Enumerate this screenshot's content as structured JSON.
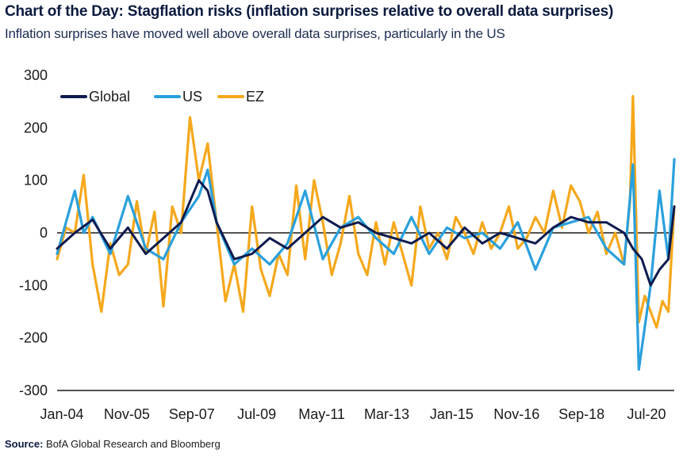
{
  "title": "Chart of the Day: Stagflation risks (inflation surprises relative to overall data surprises)",
  "subtitle": "Inflation surprises have moved well above overall data surprises, particularly in the US",
  "source_label": "Source:",
  "source_text": "BofA Global Research and Bloomberg",
  "chart_data": {
    "type": "line",
    "title": "Chart of the Day: Stagflation risks (inflation surprises relative to overall data surprises)",
    "subtitle": "Inflation surprises have moved well above overall data surprises, particularly in the US",
    "xlabel": "",
    "ylabel": "",
    "ylim": [
      -300,
      300
    ],
    "yticks": [
      300,
      200,
      100,
      0,
      -100,
      -200,
      -300
    ],
    "xlim": [
      "Jan-04",
      "Jun-21"
    ],
    "xtick_labels": [
      "Jan-04",
      "Nov-05",
      "Sep-07",
      "Jul-09",
      "May-11",
      "Mar-13",
      "Jan-15",
      "Nov-16",
      "Sep-18",
      "Jul-20"
    ],
    "legend_position": "top-left",
    "grid": false,
    "colors": {
      "Global": "#0d1b4f",
      "US": "#2aa0dc",
      "EZ": "#f5a81c"
    },
    "series": [
      {
        "name": "Global",
        "points": [
          [
            "Jan-04",
            -30
          ],
          [
            "Jul-04",
            0
          ],
          [
            "Jan-05",
            25
          ],
          [
            "Jul-05",
            -30
          ],
          [
            "Jan-06",
            10
          ],
          [
            "Jul-06",
            -40
          ],
          [
            "Jan-07",
            -10
          ],
          [
            "Jul-07",
            20
          ],
          [
            "Jan-08",
            100
          ],
          [
            "Apr-08",
            80
          ],
          [
            "Jul-08",
            20
          ],
          [
            "Jan-09",
            -50
          ],
          [
            "Jul-09",
            -40
          ],
          [
            "Jan-10",
            -10
          ],
          [
            "Jul-10",
            -30
          ],
          [
            "Jan-11",
            0
          ],
          [
            "Jul-11",
            30
          ],
          [
            "Jan-12",
            10
          ],
          [
            "Jul-12",
            20
          ],
          [
            "Jan-13",
            0
          ],
          [
            "Jul-13",
            -10
          ],
          [
            "Jan-14",
            -20
          ],
          [
            "Jul-14",
            0
          ],
          [
            "Jan-15",
            -30
          ],
          [
            "Jul-15",
            10
          ],
          [
            "Jan-16",
            -20
          ],
          [
            "Jul-16",
            0
          ],
          [
            "Jan-17",
            -10
          ],
          [
            "Jul-17",
            -20
          ],
          [
            "Jan-18",
            10
          ],
          [
            "Jul-18",
            30
          ],
          [
            "Jan-19",
            20
          ],
          [
            "Jul-19",
            20
          ],
          [
            "Jan-20",
            0
          ],
          [
            "Apr-20",
            -30
          ],
          [
            "Jul-20",
            -50
          ],
          [
            "Oct-20",
            -100
          ],
          [
            "Jan-21",
            -70
          ],
          [
            "Apr-21",
            -50
          ],
          [
            "Jun-21",
            50
          ]
        ]
      },
      {
        "name": "US",
        "points": [
          [
            "Jan-04",
            -40
          ],
          [
            "Apr-04",
            20
          ],
          [
            "Jul-04",
            80
          ],
          [
            "Oct-04",
            0
          ],
          [
            "Jan-05",
            30
          ],
          [
            "Jul-05",
            -40
          ],
          [
            "Jan-06",
            70
          ],
          [
            "Jul-06",
            -30
          ],
          [
            "Jan-07",
            -50
          ],
          [
            "Jul-07",
            20
          ],
          [
            "Jan-08",
            70
          ],
          [
            "Apr-08",
            120
          ],
          [
            "Jul-08",
            20
          ],
          [
            "Jan-09",
            -60
          ],
          [
            "Jul-09",
            -30
          ],
          [
            "Jan-10",
            -60
          ],
          [
            "Jul-10",
            -20
          ],
          [
            "Jan-11",
            80
          ],
          [
            "Jul-11",
            -50
          ],
          [
            "Jan-12",
            10
          ],
          [
            "Jul-12",
            30
          ],
          [
            "Jan-13",
            -10
          ],
          [
            "Jul-13",
            -40
          ],
          [
            "Jan-14",
            30
          ],
          [
            "Jul-14",
            -40
          ],
          [
            "Jan-15",
            10
          ],
          [
            "Jul-15",
            -10
          ],
          [
            "Jan-16",
            0
          ],
          [
            "Jul-16",
            -30
          ],
          [
            "Jan-17",
            20
          ],
          [
            "Jul-17",
            -70
          ],
          [
            "Jan-18",
            10
          ],
          [
            "Jul-18",
            20
          ],
          [
            "Jan-19",
            30
          ],
          [
            "Jul-19",
            -30
          ],
          [
            "Jan-20",
            -60
          ],
          [
            "Apr-20",
            130
          ],
          [
            "Jun-20",
            -260
          ],
          [
            "Oct-20",
            -100
          ],
          [
            "Jan-21",
            80
          ],
          [
            "Apr-21",
            -50
          ],
          [
            "Jun-21",
            140
          ]
        ]
      },
      {
        "name": "EZ",
        "points": [
          [
            "Jan-04",
            -50
          ],
          [
            "Apr-04",
            10
          ],
          [
            "Jul-04",
            0
          ],
          [
            "Oct-04",
            110
          ],
          [
            "Jan-05",
            -60
          ],
          [
            "Apr-05",
            -150
          ],
          [
            "Jul-05",
            -20
          ],
          [
            "Oct-05",
            -80
          ],
          [
            "Jan-06",
            -60
          ],
          [
            "Apr-06",
            60
          ],
          [
            "Jul-06",
            -40
          ],
          [
            "Oct-06",
            40
          ],
          [
            "Jan-07",
            -140
          ],
          [
            "Apr-07",
            50
          ],
          [
            "Jul-07",
            0
          ],
          [
            "Oct-07",
            220
          ],
          [
            "Jan-08",
            100
          ],
          [
            "Apr-08",
            170
          ],
          [
            "Jul-08",
            20
          ],
          [
            "Oct-08",
            -130
          ],
          [
            "Jan-09",
            -60
          ],
          [
            "Apr-09",
            -150
          ],
          [
            "Jul-09",
            50
          ],
          [
            "Oct-09",
            -70
          ],
          [
            "Jan-10",
            -120
          ],
          [
            "Apr-10",
            -40
          ],
          [
            "Jul-10",
            -80
          ],
          [
            "Oct-10",
            90
          ],
          [
            "Jan-11",
            -50
          ],
          [
            "Apr-11",
            100
          ],
          [
            "Jul-11",
            20
          ],
          [
            "Oct-11",
            -80
          ],
          [
            "Jan-12",
            -20
          ],
          [
            "Apr-12",
            70
          ],
          [
            "Jul-12",
            -40
          ],
          [
            "Oct-12",
            -80
          ],
          [
            "Jan-13",
            20
          ],
          [
            "Apr-13",
            -60
          ],
          [
            "Jul-13",
            20
          ],
          [
            "Oct-13",
            -40
          ],
          [
            "Jan-14",
            -100
          ],
          [
            "Apr-14",
            50
          ],
          [
            "Jul-14",
            -30
          ],
          [
            "Oct-14",
            0
          ],
          [
            "Jan-15",
            -50
          ],
          [
            "Apr-15",
            30
          ],
          [
            "Jul-15",
            0
          ],
          [
            "Oct-15",
            -40
          ],
          [
            "Jan-16",
            20
          ],
          [
            "Apr-16",
            -30
          ],
          [
            "Jul-16",
            0
          ],
          [
            "Oct-16",
            50
          ],
          [
            "Jan-17",
            -30
          ],
          [
            "Apr-17",
            -10
          ],
          [
            "Jul-17",
            30
          ],
          [
            "Oct-17",
            0
          ],
          [
            "Jan-18",
            80
          ],
          [
            "Apr-18",
            10
          ],
          [
            "Jul-18",
            90
          ],
          [
            "Oct-18",
            60
          ],
          [
            "Jan-19",
            0
          ],
          [
            "Apr-19",
            40
          ],
          [
            "Jul-19",
            -40
          ],
          [
            "Oct-19",
            0
          ],
          [
            "Jan-20",
            -60
          ],
          [
            "Mar-20",
            60
          ],
          [
            "Apr-20",
            260
          ],
          [
            "Jun-20",
            -170
          ],
          [
            "Aug-20",
            -120
          ],
          [
            "Oct-20",
            -150
          ],
          [
            "Dec-20",
            -180
          ],
          [
            "Feb-21",
            -130
          ],
          [
            "Apr-21",
            -150
          ],
          [
            "Jun-21",
            50
          ]
        ]
      }
    ]
  }
}
